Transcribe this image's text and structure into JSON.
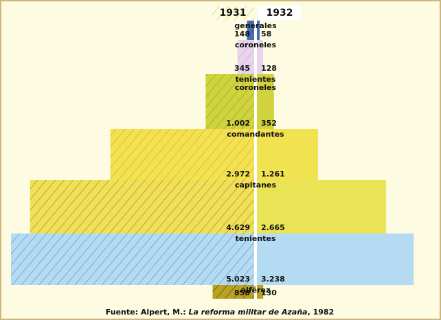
{
  "chart_data": {
    "type": "pyramid",
    "categories": [
      "generales",
      "coroneles",
      "tenientes coroneles",
      "comandantes",
      "capitanes",
      "tenientes",
      "alférez"
    ],
    "colors": [
      "#4a6cb3",
      "#ead3ec",
      "#d2d23e",
      "#f1e252",
      "#ebe356",
      "#b4dbf1",
      "#b9a21f"
    ],
    "hatch_colors": [
      "#2f4f9a",
      "#c9a9d8",
      "#78b02a",
      "#f0a020",
      "#f05a3a",
      "#5b8fd0",
      "#5a4a10"
    ],
    "series": [
      {
        "name": "1931",
        "values": [
          148,
          345,
          1002,
          2972,
          4629,
          5023,
          858
        ],
        "value_labels": [
          "148",
          "345",
          "1.002",
          "2.972",
          "4.629",
          "5.023",
          "858"
        ]
      },
      {
        "name": "1932",
        "values": [
          58,
          128,
          352,
          1261,
          2665,
          3238,
          130
        ],
        "value_labels": [
          "58",
          "128",
          "352",
          "1.261",
          "2.665",
          "3.238",
          "130"
        ]
      }
    ],
    "source": [
      "Fuente: Alpert, M.: ",
      "La reforma militar de Azaña",
      ", 1982"
    ]
  }
}
